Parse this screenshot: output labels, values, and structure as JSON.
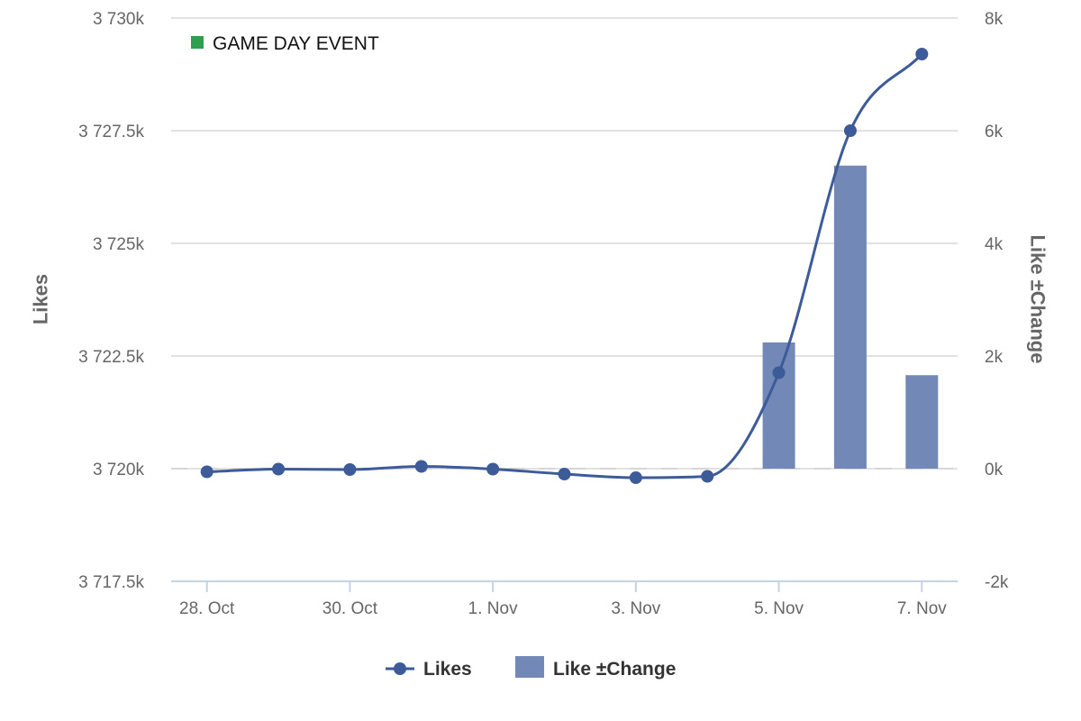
{
  "chart_data": {
    "type": "line+bar",
    "categories": [
      "28. Oct",
      "29. Oct",
      "30. Oct",
      "31. Oct",
      "1. Nov",
      "2. Nov",
      "3. Nov",
      "4. Nov",
      "5. Nov",
      "6. Nov",
      "7. Nov"
    ],
    "x_tick_labels": [
      "28. Oct",
      "30. Oct",
      "1. Nov",
      "3. Nov",
      "5. Nov",
      "7. Nov"
    ],
    "series": [
      {
        "name": "Likes",
        "type": "line",
        "axis": "left",
        "color": "#3d5a99",
        "values": [
          3719.93,
          3719.99,
          3719.98,
          3720.05,
          3719.99,
          3719.88,
          3719.8,
          3719.83,
          3722.13,
          3727.5,
          3729.2
        ]
      },
      {
        "name": "Like ±Change",
        "type": "bar",
        "axis": "right",
        "color": "#7289b8",
        "values": [
          null,
          null,
          null,
          null,
          null,
          null,
          null,
          null,
          2240,
          5380,
          1660
        ]
      }
    ],
    "y_left": {
      "label": "Likes",
      "range": [
        3717.5,
        3730
      ],
      "ticks": [
        3717.5,
        3720,
        3722.5,
        3725,
        3727.5,
        3730
      ],
      "tick_labels": [
        "3 717.5k",
        "3 720k",
        "3 722.5k",
        "3 725k",
        "3 727.5k",
        "3 730k"
      ]
    },
    "y_right": {
      "label": "Like ±Change",
      "range": [
        -2000,
        8000
      ],
      "ticks": [
        -2000,
        0,
        2000,
        4000,
        6000,
        8000
      ],
      "tick_labels": [
        "-2k",
        "0k",
        "2k",
        "4k",
        "6k",
        "8k"
      ]
    },
    "annotation": {
      "text": "GAME DAY EVENT",
      "color": "#2e9e4f"
    },
    "grid": true,
    "legend_position": "bottom-center",
    "legend": [
      {
        "label": "Likes",
        "symbol": "line-marker",
        "color": "#3d5a99"
      },
      {
        "label": "Like ±Change",
        "symbol": "square",
        "color": "#7289b8"
      }
    ]
  }
}
